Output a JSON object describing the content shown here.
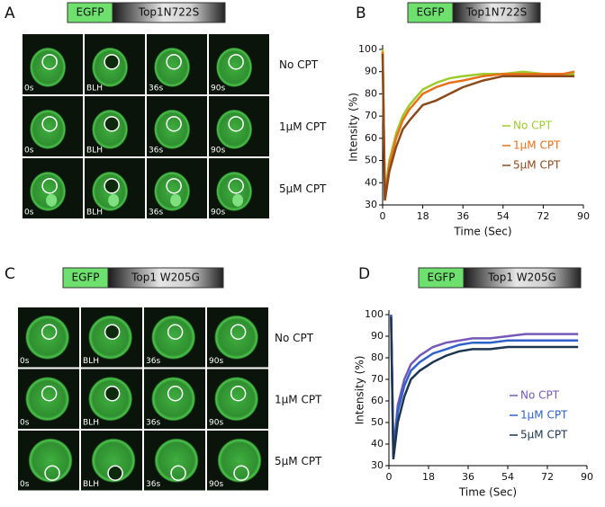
{
  "panels": [
    {
      "letter": "A",
      "construct": {
        "tag": "EGFP",
        "name": "Top1N722S"
      },
      "time_labels": [
        "0s",
        "BLH",
        "36s",
        "90s"
      ],
      "rows": [
        "No CPT",
        "1μM CPT",
        "5μM CPT"
      ]
    },
    {
      "letter": "C",
      "construct": {
        "tag": "EGFP",
        "name": "Top1 W205G"
      },
      "time_labels": [
        "0s",
        "BLH",
        "36s",
        "90s"
      ],
      "rows": [
        "No CPT",
        "1μM CPT",
        "5μM CPT"
      ]
    }
  ],
  "chart_data": [
    {
      "type": "line",
      "panel_label": "B",
      "construct": {
        "tag": "EGFP",
        "name": "Top1N722S"
      },
      "x_label": "Time (Sec)",
      "y_label": "Intensity (%)",
      "x": [
        0,
        1,
        3,
        6,
        9,
        12,
        18,
        24,
        30,
        36,
        45,
        54,
        63,
        72,
        81,
        86
      ],
      "series": [
        {
          "name": "No CPT",
          "color": "#9ccc2c",
          "values": [
            100,
            35,
            50,
            62,
            70,
            75,
            82,
            85,
            87,
            88,
            89,
            89,
            90,
            89,
            89,
            89
          ]
        },
        {
          "name": "1μM CPT",
          "color": "#e8701a",
          "values": [
            99,
            33,
            48,
            60,
            68,
            73,
            80,
            83,
            85,
            86,
            88,
            89,
            89,
            89,
            89,
            90
          ]
        },
        {
          "name": "5μM CPT",
          "color": "#8b4a1c",
          "values": [
            98,
            32,
            45,
            56,
            64,
            68,
            75,
            77,
            80,
            83,
            86,
            88,
            88,
            88,
            88,
            88
          ]
        }
      ],
      "xlim": [
        0,
        90
      ],
      "xticks": [
        0,
        18,
        36,
        54,
        72,
        90
      ],
      "ylim": [
        30,
        100
      ],
      "yticks": [
        30,
        40,
        50,
        60,
        70,
        80,
        90,
        100
      ],
      "legend": "right"
    },
    {
      "type": "line",
      "panel_label": "D",
      "construct": {
        "tag": "EGFP",
        "name": "Top1 W205G"
      },
      "x_label": "Time (Sec)",
      "y_label": "Intensity (%)",
      "x": [
        1,
        2,
        4,
        7,
        10,
        14,
        20,
        26,
        32,
        38,
        46,
        54,
        62,
        70,
        78,
        86
      ],
      "series": [
        {
          "name": "No CPT",
          "color": "#7558b8",
          "values": [
            100,
            36,
            58,
            70,
            77,
            81,
            85,
            87,
            88,
            89,
            89,
            90,
            91,
            91,
            91,
            91
          ]
        },
        {
          "name": "1μM CPT",
          "color": "#2f62c8",
          "values": [
            100,
            35,
            55,
            67,
            74,
            78,
            82,
            84,
            86,
            87,
            87,
            88,
            88,
            88,
            88,
            88
          ]
        },
        {
          "name": "5μM CPT",
          "color": "#1e3550",
          "values": [
            99,
            33,
            50,
            62,
            70,
            74,
            78,
            81,
            83,
            84,
            84,
            85,
            85,
            85,
            85,
            85
          ]
        }
      ],
      "xlim": [
        0,
        90
      ],
      "xticks": [
        0,
        18,
        36,
        54,
        72,
        90
      ],
      "ylim": [
        30,
        100
      ],
      "yticks": [
        30,
        40,
        50,
        60,
        70,
        80,
        90,
        100
      ],
      "legend": "right"
    }
  ]
}
